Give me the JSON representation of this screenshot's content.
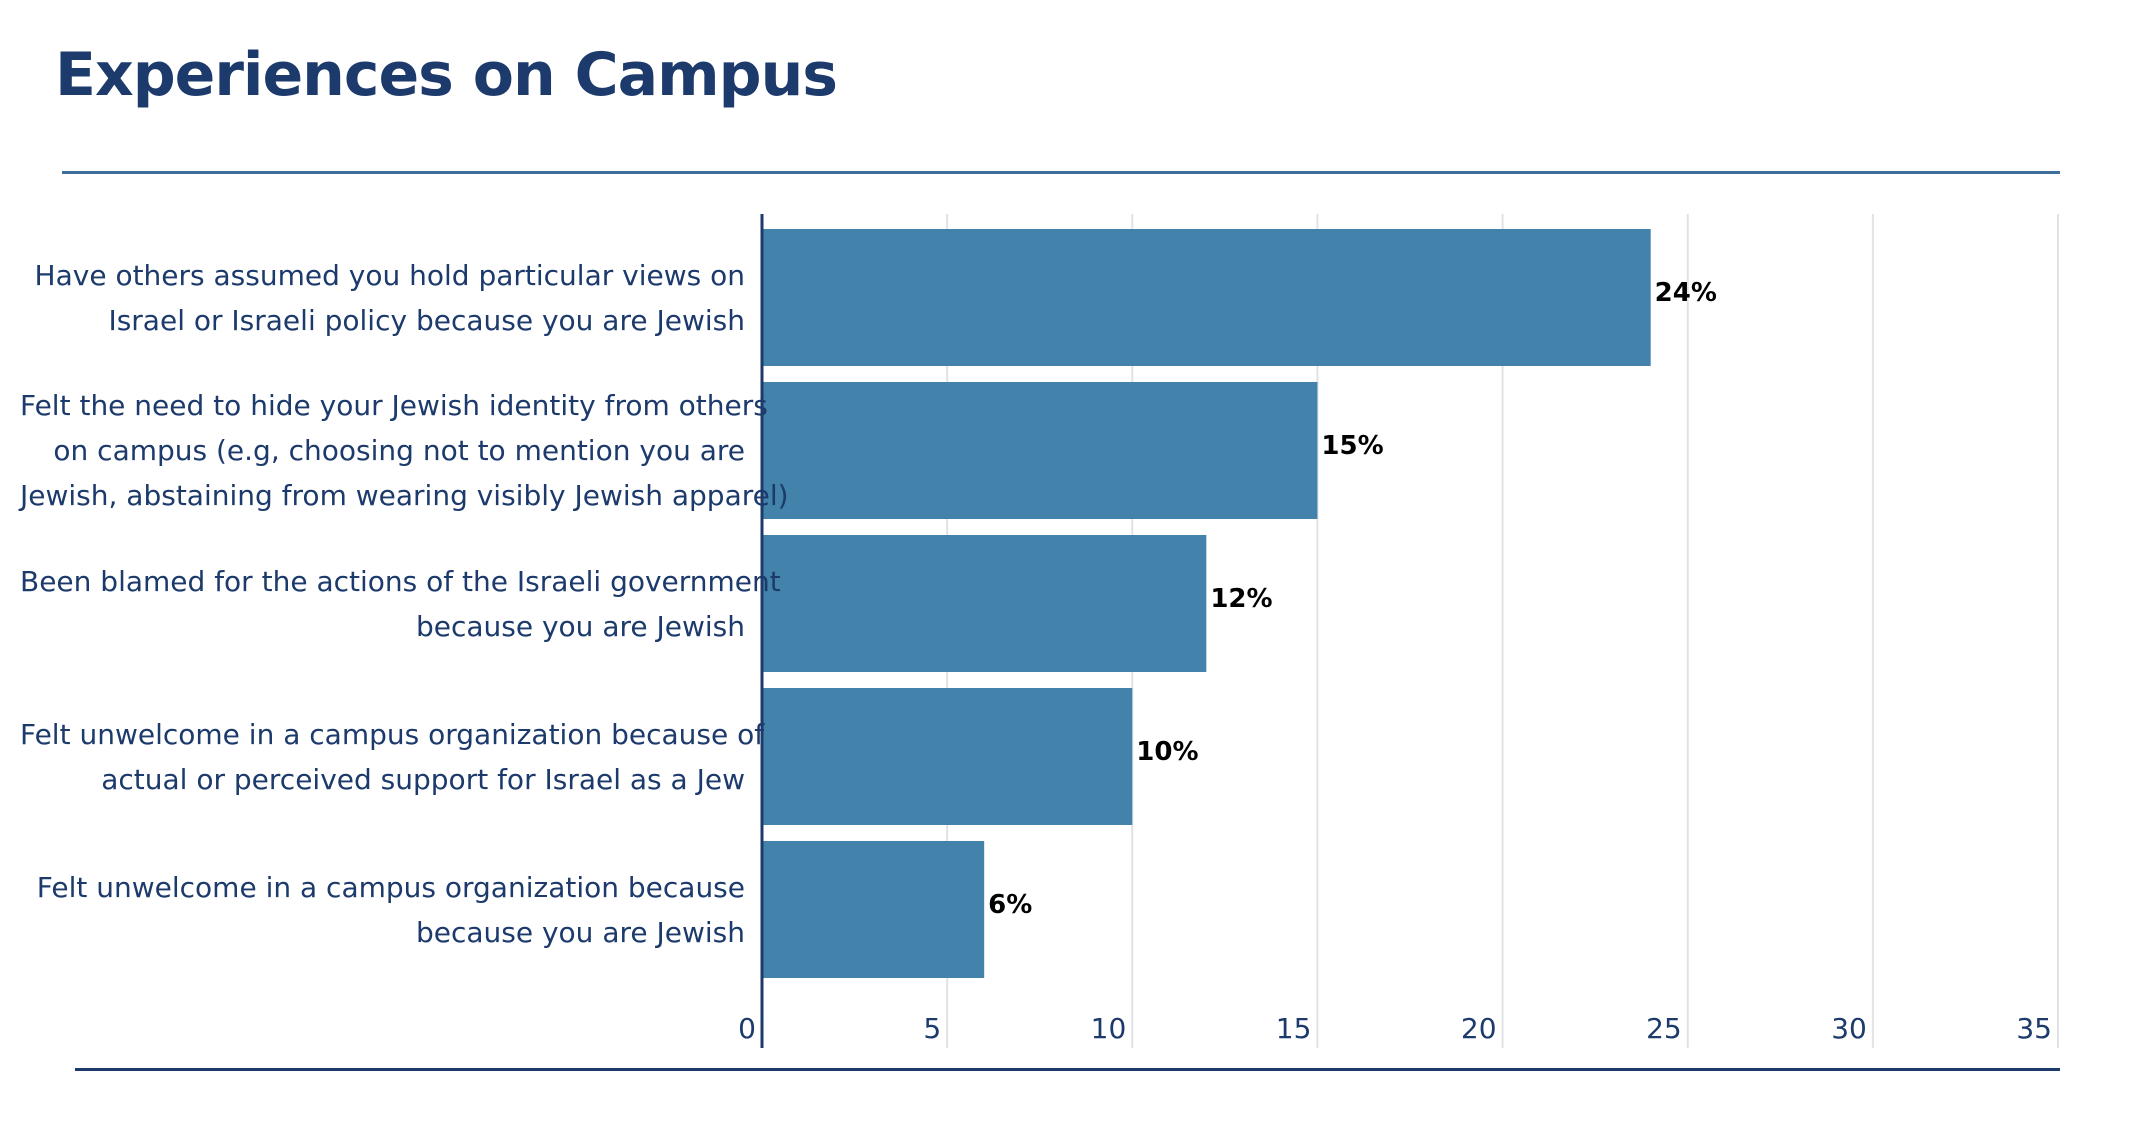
{
  "header": {
    "title": "Experiences on Campus"
  },
  "chart_data": {
    "type": "bar",
    "orientation": "horizontal",
    "title": "Experiences on Campus",
    "categories": [
      [
        "Have others assumed you hold particular views on",
        "Israel or Israeli policy because you are Jewish"
      ],
      [
        "Felt the need to hide your Jewish identity from others",
        "on campus (e.g, choosing not to mention you are",
        "Jewish, abstaining from wearing visibly Jewish apparel)"
      ],
      [
        "Been blamed for the actions of the Israeli government",
        "because you are Jewish"
      ],
      [
        "Felt unwelcome in a campus organization because of",
        "actual or perceived support for Israel as a Jew"
      ],
      [
        "Felt unwelcome in a campus organization because",
        "because you are Jewish"
      ]
    ],
    "values": [
      24,
      15,
      12,
      10,
      6
    ],
    "data_labels": [
      "24%",
      "15%",
      "12%",
      "10%",
      "6%"
    ],
    "xlim": [
      0,
      35
    ],
    "xticks": [
      0,
      5,
      10,
      15,
      20,
      25,
      30,
      35
    ],
    "xlabel": "",
    "ylabel": "",
    "grid": true,
    "bar_color": "#4382ab",
    "text_color": "#1c3a6b"
  }
}
